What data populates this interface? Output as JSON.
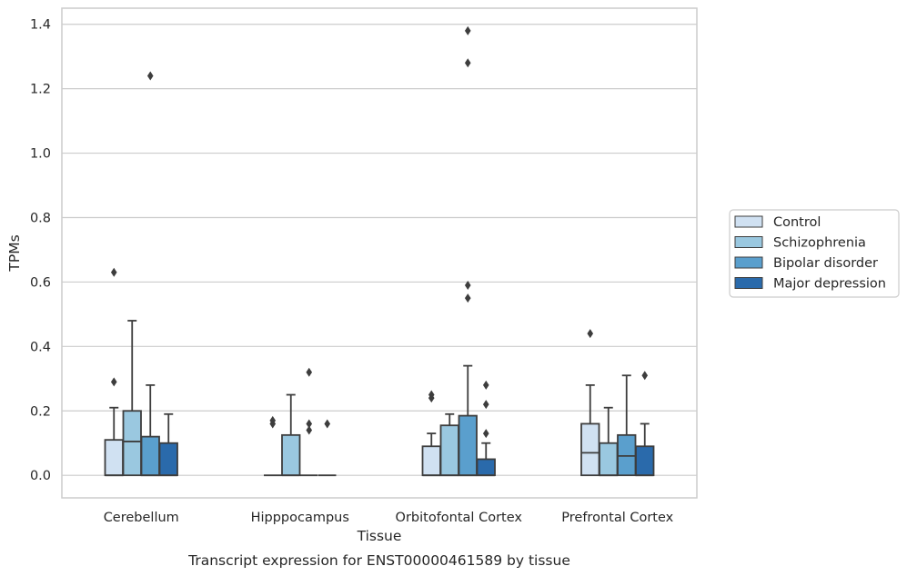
{
  "chart_data": {
    "type": "box",
    "xlabel": "Tissue",
    "ylabel": "TPMs",
    "caption": "Transcript expression for ENST00000461589 by tissue",
    "ylim": [
      -0.07,
      1.45
    ],
    "yticks": [
      0.0,
      0.2,
      0.4,
      0.6,
      0.8,
      1.0,
      1.2,
      1.4
    ],
    "ytick_labels": [
      "0.0",
      "0.2",
      "0.4",
      "0.6",
      "0.8",
      "1.0",
      "1.2",
      "1.4"
    ],
    "grid": "horizontal",
    "legend_position": "right",
    "categories": [
      "Cerebellum",
      "Hipppocampus",
      "Orbitofontal Cortex",
      "Prefrontal Cortex"
    ],
    "series": [
      {
        "name": "Control",
        "color": "#d0e1f2",
        "boxes": [
          {
            "q1": 0.0,
            "median": 0.0,
            "q3": 0.11,
            "whisker_low": 0.0,
            "whisker_high": 0.21,
            "outliers": [
              0.29,
              0.63
            ]
          },
          {
            "q1": 0.0,
            "median": 0.0,
            "q3": 0.0,
            "whisker_low": 0.0,
            "whisker_high": 0.0,
            "outliers": [
              0.16,
              0.17
            ]
          },
          {
            "q1": 0.0,
            "median": 0.0,
            "q3": 0.09,
            "whisker_low": 0.0,
            "whisker_high": 0.13,
            "outliers": [
              0.24,
              0.25
            ]
          },
          {
            "q1": 0.0,
            "median": 0.07,
            "q3": 0.16,
            "whisker_low": 0.0,
            "whisker_high": 0.28,
            "outliers": [
              0.44
            ]
          }
        ]
      },
      {
        "name": "Schizophrenia",
        "color": "#9ac8e0",
        "boxes": [
          {
            "q1": 0.0,
            "median": 0.105,
            "q3": 0.2,
            "whisker_low": 0.0,
            "whisker_high": 0.48,
            "outliers": []
          },
          {
            "q1": 0.0,
            "median": 0.0,
            "q3": 0.125,
            "whisker_low": 0.0,
            "whisker_high": 0.25,
            "outliers": []
          },
          {
            "q1": 0.0,
            "median": 0.0,
            "q3": 0.155,
            "whisker_low": 0.0,
            "whisker_high": 0.19,
            "outliers": []
          },
          {
            "q1": 0.0,
            "median": 0.0,
            "q3": 0.1,
            "whisker_low": 0.0,
            "whisker_high": 0.21,
            "outliers": []
          }
        ]
      },
      {
        "name": "Bipolar disorder",
        "color": "#5a9fcd",
        "boxes": [
          {
            "q1": 0.0,
            "median": 0.0,
            "q3": 0.12,
            "whisker_low": 0.0,
            "whisker_high": 0.28,
            "outliers": [
              1.24
            ]
          },
          {
            "q1": 0.0,
            "median": 0.0,
            "q3": 0.0,
            "whisker_low": 0.0,
            "whisker_high": 0.0,
            "outliers": [
              0.14,
              0.16,
              0.32
            ]
          },
          {
            "q1": 0.0,
            "median": 0.0,
            "q3": 0.185,
            "whisker_low": 0.0,
            "whisker_high": 0.34,
            "outliers": [
              0.55,
              0.59,
              1.28,
              1.38
            ]
          },
          {
            "q1": 0.0,
            "median": 0.06,
            "q3": 0.125,
            "whisker_low": 0.0,
            "whisker_high": 0.31,
            "outliers": []
          }
        ]
      },
      {
        "name": "Major depression",
        "color": "#2a6aab",
        "boxes": [
          {
            "q1": 0.0,
            "median": 0.0,
            "q3": 0.1,
            "whisker_low": 0.0,
            "whisker_high": 0.19,
            "outliers": []
          },
          {
            "q1": 0.0,
            "median": 0.0,
            "q3": 0.0,
            "whisker_low": 0.0,
            "whisker_high": 0.0,
            "outliers": [
              0.16
            ]
          },
          {
            "q1": 0.0,
            "median": 0.0,
            "q3": 0.05,
            "whisker_low": 0.0,
            "whisker_high": 0.1,
            "outliers": [
              0.13,
              0.22,
              0.28
            ]
          },
          {
            "q1": 0.0,
            "median": 0.0,
            "q3": 0.09,
            "whisker_low": 0.0,
            "whisker_high": 0.16,
            "outliers": [
              0.31
            ]
          }
        ]
      }
    ]
  }
}
